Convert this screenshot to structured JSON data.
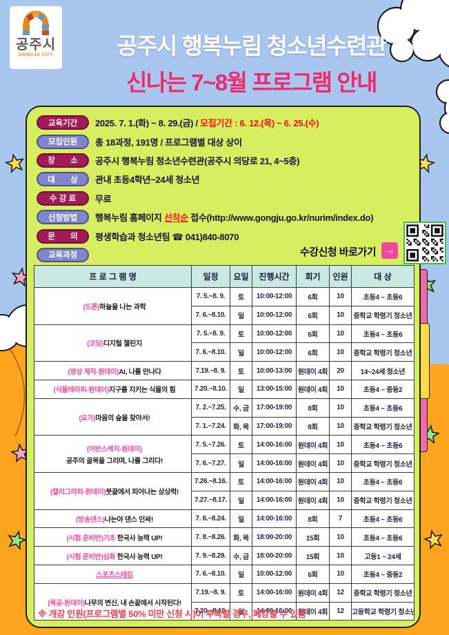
{
  "logo": {
    "name": "공주시",
    "subtitle": "GONGJU CITY"
  },
  "header": {
    "title_line1": "공주시 행복누림 청소년수련관",
    "title_line2": "신나는 7~8월 프로그램 안내"
  },
  "info": {
    "items": [
      {
        "label": "교육기간",
        "text": "2025. 7. 1.(화) ~ 8. 29.(금) / ",
        "highlight": "모집기간 : 6. 12.(목) ~ 6. 25.(수)"
      },
      {
        "label": "모집인원",
        "text": "총 18과정, 191명 / 프로그램별 대상 상이"
      },
      {
        "label": "장       소",
        "text": "공주시 행복누림 청소년수련관(공주시 의당로 21, 4~5층)"
      },
      {
        "label": "대       상",
        "text": "관내 초등4학년~24세 청소년"
      },
      {
        "label": "수 강 료",
        "text": "무료"
      },
      {
        "label": "신청방법",
        "pre": "행복누림 홈페이지 ",
        "link": "선착순",
        "post": " 접수(http://www.gongju.go.kr/nurim/index.do)"
      },
      {
        "label": "문       의",
        "text": "평생학습과 청소년팀 ☎ 041)840-8070"
      },
      {
        "label": "교육과정",
        "text": ""
      }
    ],
    "apply_cta": "수강신청 바로가기",
    "arrow": "→"
  },
  "table": {
    "headers": [
      "프 로 그 램 명",
      "일정",
      "요일",
      "진행시간",
      "회기",
      "인원",
      "대 상"
    ],
    "groups": [
      {
        "pink": "(드론)",
        "black": "하늘을 나는 과학",
        "rows": [
          [
            "7. 5.~8. 9.",
            "토",
            "10:00-12:00",
            "6회",
            "10",
            "초등4 ~ 초등6"
          ],
          [
            "7. 6.~8.10.",
            "일",
            "10:00-12:00",
            "6회",
            "10",
            "중학교 학령기 청소년"
          ]
        ]
      },
      {
        "pink": "(코딩)",
        "black": "디지털 챌린지",
        "rows": [
          [
            "7. 5.~8. 9.",
            "토",
            "10:00-12:00",
            "6회",
            "10",
            "초등4 ~ 초등6"
          ],
          [
            "7. 6.~8.10.",
            "일",
            "10:00-12:00",
            "6회",
            "10",
            "중학교 학령기 청소년"
          ]
        ]
      },
      {
        "pink": "(영상 제작-원데이)",
        "black": "AI, 나를 만나다",
        "rows": [
          [
            "7.19.~8. 9.",
            "토",
            "10:00-13:00",
            "원데이 4회",
            "20",
            "14~24세 청소년"
          ]
        ]
      },
      {
        "pink": "(식물테라피-원데이)",
        "black": "지구를 지키는 식물의 힘",
        "rows": [
          [
            "7.20.~8.10.",
            "일",
            "13:00-15:00",
            "원데이 4회",
            "10",
            "초등4 ~ 중등2"
          ]
        ]
      },
      {
        "pink": "(요가)",
        "black": "마음의 숲을 찾아서!",
        "rows": [
          [
            "7. 2.~7.25.",
            "수, 금",
            "17:00-19:00",
            "8회",
            "10",
            "초등4 ~ 초등6"
          ],
          [
            "7. 1.~7.24.",
            "화, 목",
            "17:00-19:00",
            "8회",
            "10",
            "중학교 학령기 청소년"
          ]
        ]
      },
      {
        "pink": "(어반스케치-원데이)",
        "black": "",
        "line2": "공주의 골목을 그리며, 나를 그리다!",
        "rows": [
          [
            "7. 5.~7.26.",
            "토",
            "14:00-16:00",
            "원데이 4회",
            "10",
            "초등4 ~ 초등6"
          ],
          [
            "7. 6.~7.27.",
            "일",
            "14:00-16:00",
            "원데이 4회",
            "10",
            "중학교 학령기 청소년"
          ]
        ]
      },
      {
        "pink": "(캘리그라피-원데이)",
        "black": "붓끝에서 피어나는 상상력!",
        "rows": [
          [
            "7.26.~8.16.",
            "토",
            "14:00-16:00",
            "원데이 4회",
            "10",
            "초등4 ~ 초등6"
          ],
          [
            "7.27.~8.17.",
            "일",
            "14:00-16:00",
            "원데이 4회",
            "10",
            "중학교 학령기 청소년"
          ]
        ]
      },
      {
        "pink": "(방송댄스)",
        "black": "나는야 댄스 인싸!",
        "rows": [
          [
            "7. 6.~8.24.",
            "일",
            "14:00-16:00",
            "8회",
            "7",
            "초등4 ~ 초등6"
          ]
        ]
      },
      {
        "pink": "(시험 준비반)기초",
        "black": " 한국사 능력 UP!",
        "rows": [
          [
            "7. 8.~8.26.",
            "화, 목",
            "18:00-20:00",
            "15회",
            "10",
            "초등4 ~ 초등6"
          ]
        ]
      },
      {
        "pink": "(시험 준비반)심화",
        "black": " 한국사 능력 UP!",
        "rows": [
          [
            "7. 9.~8.29.",
            "수, 금",
            "18:00-20:00",
            "15회",
            "10",
            "고등1 ~ 24세"
          ]
        ]
      },
      {
        "pink": "스포츠스태킹",
        "black": "",
        "underline": true,
        "rows": [
          [
            "7. 6.~8.10.",
            "일",
            "10:00-12:00",
            "6회",
            "10",
            "초등4 ~ 중등2"
          ]
        ]
      },
      {
        "pink": "(목공-원데이)",
        "black": "나무의 변신, 내 손끝에서 시작된다!",
        "rows": [
          [
            "7.19.~8. 9.",
            "토",
            "14:00-16:00",
            "원데이 4회",
            "12",
            "중학교 학령기 청소년"
          ],
          [
            "7.20.~8.10.",
            "일",
            "14:00-16:00",
            "원데이 4회",
            "12",
            "고등학교 학령기 청소년"
          ]
        ]
      }
    ]
  },
  "footer": {
    "note": "※ 개강 인원(프로그램별 50% 미만 신청 시)이 부족할 경우, 폐강될 수 있음"
  },
  "colors": {
    "sky": "#a9c6ee",
    "ground_orange": "#ffa41e",
    "panel_lime": "#d7ee5e",
    "pill_maroon": "#a11b56",
    "pill_purple": "#8185c9",
    "title_pink": "#ee2a6e",
    "table_header": "#c9e9e2",
    "program_pink": "#f5499b",
    "alert_red": "#fb0d0d"
  }
}
